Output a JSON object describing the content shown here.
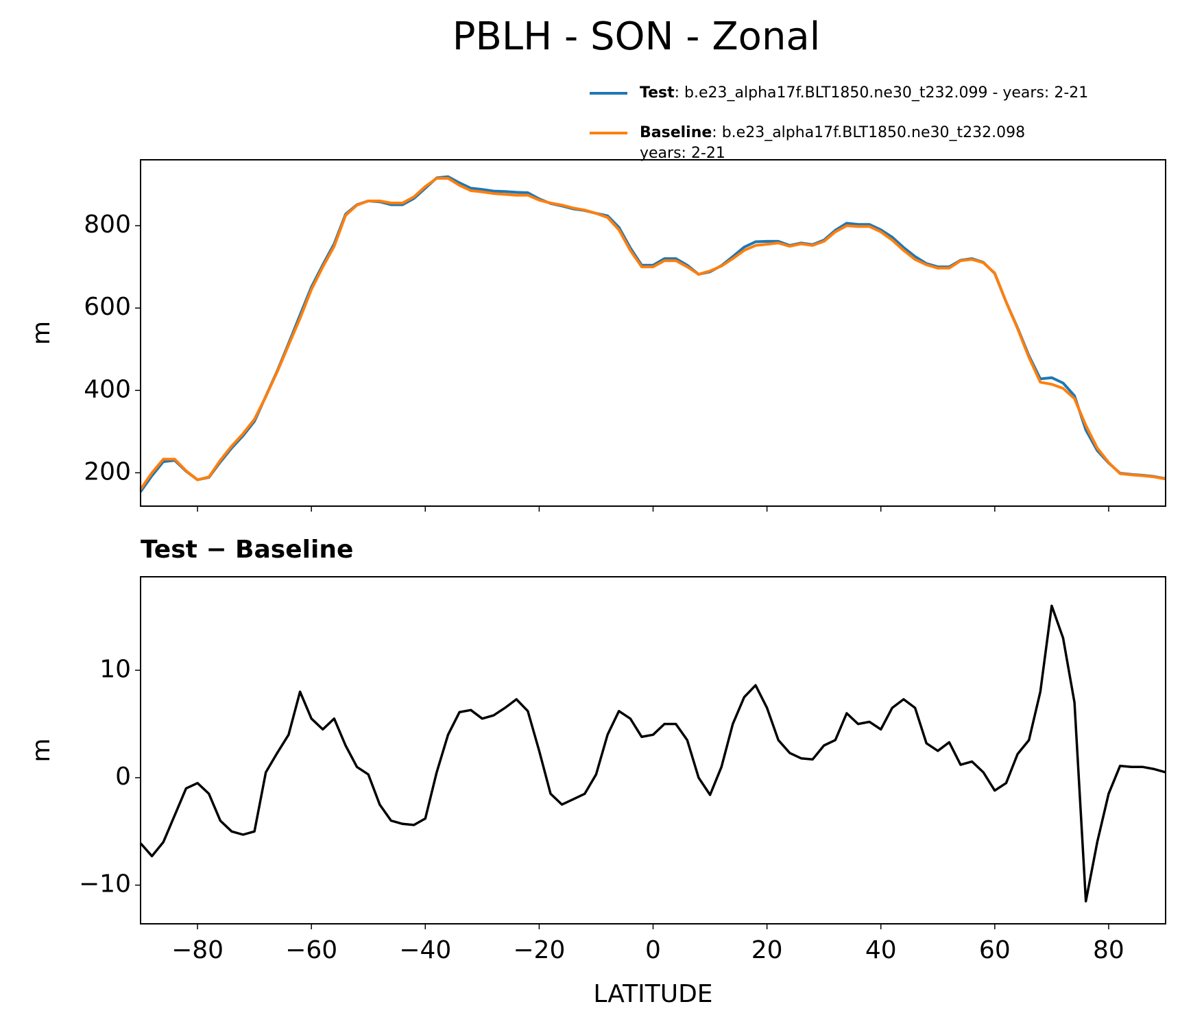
{
  "title": "PBLH - SON - Zonal",
  "chart_data": [
    {
      "type": "line",
      "ylabel": "m",
      "xtick_labels": false,
      "x": [
        -90,
        -88,
        -86,
        -84,
        -82,
        -80,
        -78,
        -76,
        -74,
        -72,
        -70,
        -68,
        -66,
        -64,
        -62,
        -60,
        -58,
        -56,
        -54,
        -52,
        -50,
        -48,
        -46,
        -44,
        -42,
        -40,
        -38,
        -36,
        -34,
        -32,
        -30,
        -28,
        -26,
        -24,
        -22,
        -20,
        -18,
        -16,
        -14,
        -12,
        -10,
        -8,
        -6,
        -4,
        -2,
        0,
        2,
        4,
        6,
        8,
        10,
        12,
        14,
        16,
        18,
        20,
        22,
        24,
        26,
        28,
        30,
        32,
        34,
        36,
        38,
        40,
        42,
        44,
        46,
        48,
        50,
        52,
        54,
        56,
        58,
        60,
        62,
        64,
        66,
        68,
        70,
        72,
        74,
        76,
        78,
        80,
        82,
        84,
        86,
        88,
        90
      ],
      "series": [
        {
          "name": "Test",
          "label_lines": [
            ": b.e23_alpha17f.BLT1850.ne30_t232.099 - years: 2-21"
          ],
          "color": "#1f77b4",
          "values": [
            154,
            193,
            227,
            230,
            204,
            183,
            189,
            226,
            260,
            290,
            325,
            386,
            447,
            514,
            583,
            651,
            705,
            756,
            828,
            851,
            860,
            858,
            851,
            851,
            866,
            891,
            916,
            919,
            904,
            891,
            888,
            884,
            883,
            881,
            880,
            865,
            854,
            848,
            841,
            837,
            830,
            824,
            796,
            746,
            704,
            704,
            720,
            720,
            704,
            682,
            688,
            703,
            725,
            748,
            761,
            762,
            762,
            752,
            758,
            754,
            765,
            789,
            806,
            803,
            803,
            790,
            772,
            747,
            725,
            708,
            700,
            700,
            716,
            720,
            711,
            684,
            615,
            552,
            484,
            428,
            431,
            418,
            387,
            304,
            254,
            224,
            199,
            196,
            194,
            191,
            186
          ]
        },
        {
          "name": "Baseline",
          "label_lines": [
            ": b.e23_alpha17f.BLT1850.ne30_t232.098",
            "years: 2-21"
          ],
          "color": "#ff7f0e",
          "values": [
            160,
            200,
            233,
            233,
            205,
            183,
            190,
            230,
            265,
            295,
            330,
            385,
            445,
            510,
            575,
            645,
            700,
            750,
            825,
            850,
            860,
            860,
            855,
            855,
            870,
            895,
            915,
            915,
            898,
            885,
            882,
            878,
            876,
            874,
            874,
            862,
            855,
            850,
            843,
            838,
            830,
            820,
            790,
            740,
            700,
            700,
            715,
            715,
            700,
            682,
            690,
            702,
            720,
            740,
            752,
            755,
            758,
            750,
            756,
            752,
            762,
            785,
            800,
            798,
            798,
            785,
            765,
            740,
            718,
            705,
            697,
            697,
            715,
            718,
            710,
            685,
            615,
            550,
            480,
            420,
            415,
            405,
            380,
            315,
            260,
            225,
            198,
            195,
            193,
            190,
            185
          ]
        }
      ],
      "xlim": [
        -90,
        90
      ],
      "xticks": [
        {
          "value": -80,
          "label": "−80"
        },
        {
          "value": -60,
          "label": "−60"
        },
        {
          "value": -40,
          "label": "−40"
        },
        {
          "value": -20,
          "label": "−20"
        },
        0,
        20,
        40,
        60,
        80
      ],
      "ylim": [
        119,
        960
      ],
      "yticks": [
        200,
        400,
        600,
        800
      ]
    },
    {
      "type": "line",
      "title": "Test − Baseline",
      "ylabel": "m",
      "xlabel": "LATITUDE",
      "xtick_labels": true,
      "color": "#000000",
      "x": [
        -90,
        -88,
        -86,
        -84,
        -82,
        -80,
        -78,
        -76,
        -74,
        -72,
        -70,
        -68,
        -66,
        -64,
        -62,
        -60,
        -58,
        -56,
        -54,
        -52,
        -50,
        -48,
        -46,
        -44,
        -42,
        -40,
        -38,
        -36,
        -34,
        -32,
        -30,
        -28,
        -26,
        -24,
        -22,
        -20,
        -18,
        -16,
        -14,
        -12,
        -10,
        -8,
        -6,
        -4,
        -2,
        0,
        2,
        4,
        6,
        8,
        10,
        12,
        14,
        16,
        18,
        20,
        22,
        24,
        26,
        28,
        30,
        32,
        34,
        36,
        38,
        40,
        42,
        44,
        46,
        48,
        50,
        52,
        54,
        56,
        58,
        60,
        62,
        64,
        66,
        68,
        70,
        72,
        74,
        76,
        78,
        80,
        82,
        84,
        86,
        88,
        90
      ],
      "values": [
        -6.1,
        -7.3,
        -6.0,
        -3.5,
        -1.0,
        -0.5,
        -1.5,
        -4.0,
        -5.0,
        -5.3,
        -5.0,
        0.5,
        2.3,
        4.0,
        8.0,
        5.5,
        4.5,
        5.5,
        3.0,
        1.0,
        0.3,
        -2.5,
        -4.0,
        -4.3,
        -4.4,
        -3.8,
        0.5,
        4.0,
        6.1,
        6.3,
        5.5,
        5.8,
        6.5,
        7.3,
        6.2,
        2.5,
        -1.5,
        -2.5,
        -2.0,
        -1.5,
        0.3,
        4.0,
        6.2,
        5.5,
        3.8,
        4.0,
        5.0,
        5.0,
        3.5,
        0.0,
        -1.6,
        1.0,
        5.0,
        7.5,
        8.6,
        6.5,
        3.5,
        2.3,
        1.8,
        1.7,
        3.0,
        3.5,
        6.0,
        5.0,
        5.2,
        4.5,
        6.5,
        7.3,
        6.5,
        3.2,
        2.5,
        3.3,
        1.2,
        1.5,
        0.5,
        -1.2,
        -0.5,
        2.2,
        3.5,
        8.0,
        16.0,
        13.0,
        7.0,
        -11.5,
        -6.0,
        -1.5,
        1.1,
        1.0,
        1.0,
        0.8,
        0.5
      ],
      "xlim": [
        -90,
        90
      ],
      "xticks": [
        {
          "value": -80,
          "label": "−80"
        },
        {
          "value": -60,
          "label": "−60"
        },
        {
          "value": -40,
          "label": "−40"
        },
        {
          "value": -20,
          "label": "−20"
        },
        0,
        20,
        40,
        60,
        80
      ],
      "ylim": [
        -13.6,
        18.7
      ],
      "yticks": [
        {
          "value": -10,
          "label": "−10"
        },
        0,
        10
      ]
    }
  ]
}
